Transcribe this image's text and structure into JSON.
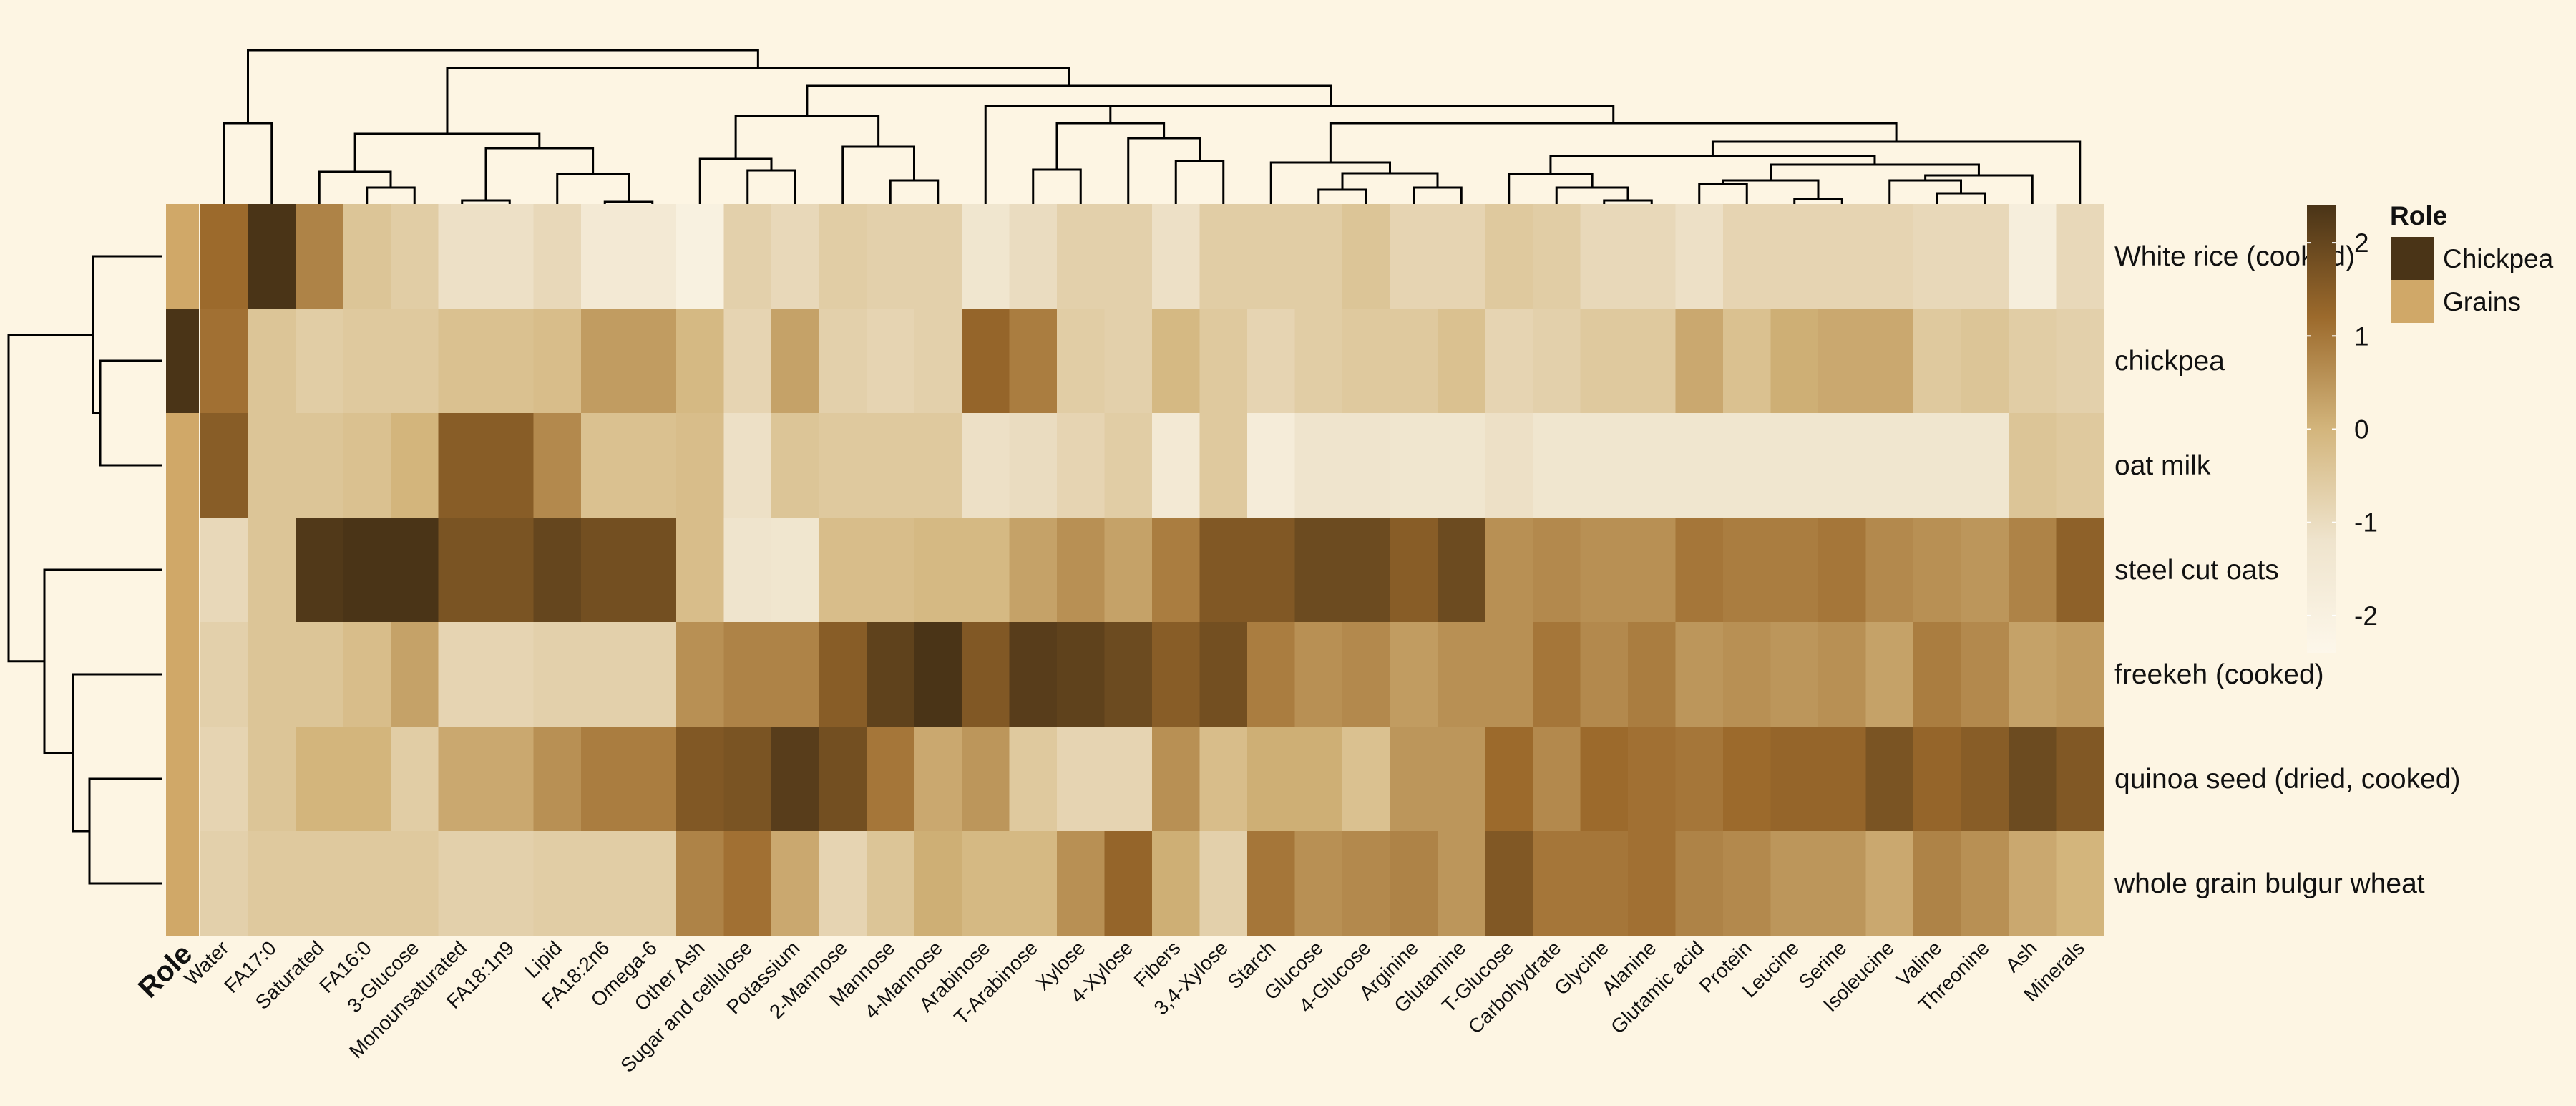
{
  "chart_data": {
    "type": "heatmap",
    "rows": [
      "White rice (cooked)",
      "chickpea",
      "oat milk",
      "steel cut oats",
      "freekeh (cooked)",
      "quinoa seed (dried, cooked)",
      "whole grain bulgur wheat"
    ],
    "row_roles": [
      "Grains",
      "Chickpea",
      "Grains",
      "Grains",
      "Grains",
      "Grains",
      "Grains"
    ],
    "columns": [
      "Water",
      "FA17:0",
      "Saturated",
      "FA16:0",
      "3-Glucose",
      "Monounsaturated",
      "FA18:1n9",
      "Lipid",
      "FA18:2n6",
      "Omega-6",
      "Other Ash",
      "Sugar and cellulose",
      "Potassium",
      "2-Mannose",
      "Mannose",
      "4-Mannose",
      "Arabinose",
      "T-Arabinose",
      "Xylose",
      "4-Xylose",
      "Fibers",
      "3,4-Xylose",
      "Starch",
      "Glucose",
      "4-Glucose",
      "Arginine",
      "Glutamine",
      "T-Glucose",
      "Carbohydrate",
      "Glycine",
      "Alanine",
      "Glutamic acid",
      "Protein",
      "Leucine",
      "Serine",
      "Isoleucine",
      "Valine",
      "Threonine",
      "Ash",
      "Minerals"
    ],
    "values": [
      [
        1.2,
        2.4,
        0.8,
        -0.4,
        -0.6,
        -1.1,
        -1.1,
        -0.9,
        -1.5,
        -1.5,
        -2.0,
        -0.7,
        -0.9,
        -0.6,
        -0.7,
        -0.7,
        -1.3,
        -1.0,
        -0.7,
        -0.7,
        -1.1,
        -0.6,
        -0.6,
        -0.6,
        -0.4,
        -0.8,
        -0.8,
        -0.5,
        -0.6,
        -0.9,
        -0.9,
        -1.1,
        -0.8,
        -0.8,
        -0.8,
        -0.8,
        -0.9,
        -0.9,
        -1.8,
        -0.9
      ],
      [
        1.1,
        -0.4,
        -0.6,
        -0.5,
        -0.5,
        -0.3,
        -0.3,
        -0.2,
        0.4,
        0.4,
        -0.1,
        -0.8,
        0.3,
        -0.7,
        -0.8,
        -0.7,
        1.3,
        0.9,
        -0.6,
        -0.7,
        -0.1,
        -0.5,
        -0.8,
        -0.6,
        -0.5,
        -0.5,
        -0.3,
        -0.8,
        -0.7,
        -0.5,
        -0.5,
        0.2,
        -0.3,
        0.1,
        0.2,
        0.2,
        -0.5,
        -0.4,
        -0.6,
        -0.7
      ],
      [
        1.5,
        -0.4,
        -0.4,
        -0.3,
        0.0,
        1.5,
        1.5,
        0.7,
        -0.3,
        -0.3,
        -0.2,
        -1.1,
        -0.4,
        -0.5,
        -0.5,
        -0.5,
        -1.1,
        -1.0,
        -0.8,
        -0.6,
        -1.5,
        -0.5,
        -1.7,
        -1.2,
        -1.2,
        -1.3,
        -1.3,
        -1.1,
        -1.3,
        -1.3,
        -1.3,
        -1.3,
        -1.3,
        -1.3,
        -1.3,
        -1.3,
        -1.3,
        -1.3,
        -0.4,
        -0.5
      ],
      [
        -0.9,
        -0.4,
        2.3,
        2.4,
        2.4,
        1.7,
        1.7,
        2.0,
        1.8,
        1.8,
        -0.2,
        -1.2,
        -1.3,
        -0.2,
        -0.2,
        -0.1,
        -0.1,
        0.3,
        0.6,
        0.3,
        0.9,
        1.6,
        1.6,
        1.9,
        1.9,
        1.5,
        1.9,
        0.6,
        0.7,
        0.6,
        0.6,
        1.0,
        0.9,
        0.9,
        1.0,
        0.7,
        0.6,
        0.5,
        0.8,
        1.4
      ],
      [
        -0.7,
        -0.4,
        -0.4,
        -0.2,
        0.3,
        -0.8,
        -0.8,
        -0.7,
        -0.7,
        -0.7,
        0.6,
        0.8,
        0.8,
        1.5,
        2.1,
        2.4,
        1.6,
        2.2,
        2.1,
        1.9,
        1.5,
        1.8,
        0.9,
        0.6,
        0.7,
        0.4,
        0.6,
        0.6,
        1.0,
        0.7,
        0.9,
        0.5,
        0.6,
        0.5,
        0.6,
        0.3,
        0.9,
        0.7,
        0.3,
        0.4
      ],
      [
        -0.8,
        -0.4,
        0.0,
        0.0,
        -0.6,
        0.2,
        0.2,
        0.6,
        0.9,
        0.9,
        1.6,
        1.7,
        2.2,
        1.8,
        1.0,
        0.2,
        0.5,
        -0.5,
        -0.8,
        -0.8,
        0.6,
        -0.2,
        0.1,
        0.1,
        -0.3,
        0.5,
        0.5,
        1.2,
        0.7,
        1.2,
        1.1,
        1.0,
        1.2,
        1.3,
        1.3,
        1.7,
        1.3,
        1.5,
        1.9,
        1.6
      ],
      [
        -0.7,
        -0.5,
        -0.5,
        -0.5,
        -0.5,
        -0.7,
        -0.7,
        -0.6,
        -0.6,
        -0.6,
        0.8,
        1.1,
        0.2,
        -0.8,
        -0.4,
        0.1,
        -0.1,
        -0.1,
        0.6,
        1.3,
        0.1,
        -0.7,
        1.0,
        0.6,
        0.7,
        0.8,
        0.5,
        1.6,
        1.0,
        1.0,
        1.1,
        0.8,
        0.7,
        0.5,
        0.5,
        0.2,
        0.8,
        0.6,
        0.2,
        0.0
      ]
    ],
    "row_order_dendrogram": [
      [
        0,
        1,
        2
      ],
      [
        3,
        4,
        5
      ],
      [
        6
      ]
    ],
    "role_annotation": {
      "title": "Role",
      "axis_label": "Role",
      "entries": [
        {
          "name": "Chickpea",
          "color": "#4a3417"
        },
        {
          "name": "Grains",
          "color": "#d0a868"
        }
      ]
    },
    "colorbar": {
      "range": [
        -2.4,
        2.4
      ],
      "ticks": [
        2,
        1,
        0,
        -1,
        -2
      ],
      "colors": [
        "#fdf7ea",
        "#efe4cd",
        "#d3b57c",
        "#9c6a2c",
        "#4a3417"
      ]
    },
    "legend_position": "right"
  }
}
